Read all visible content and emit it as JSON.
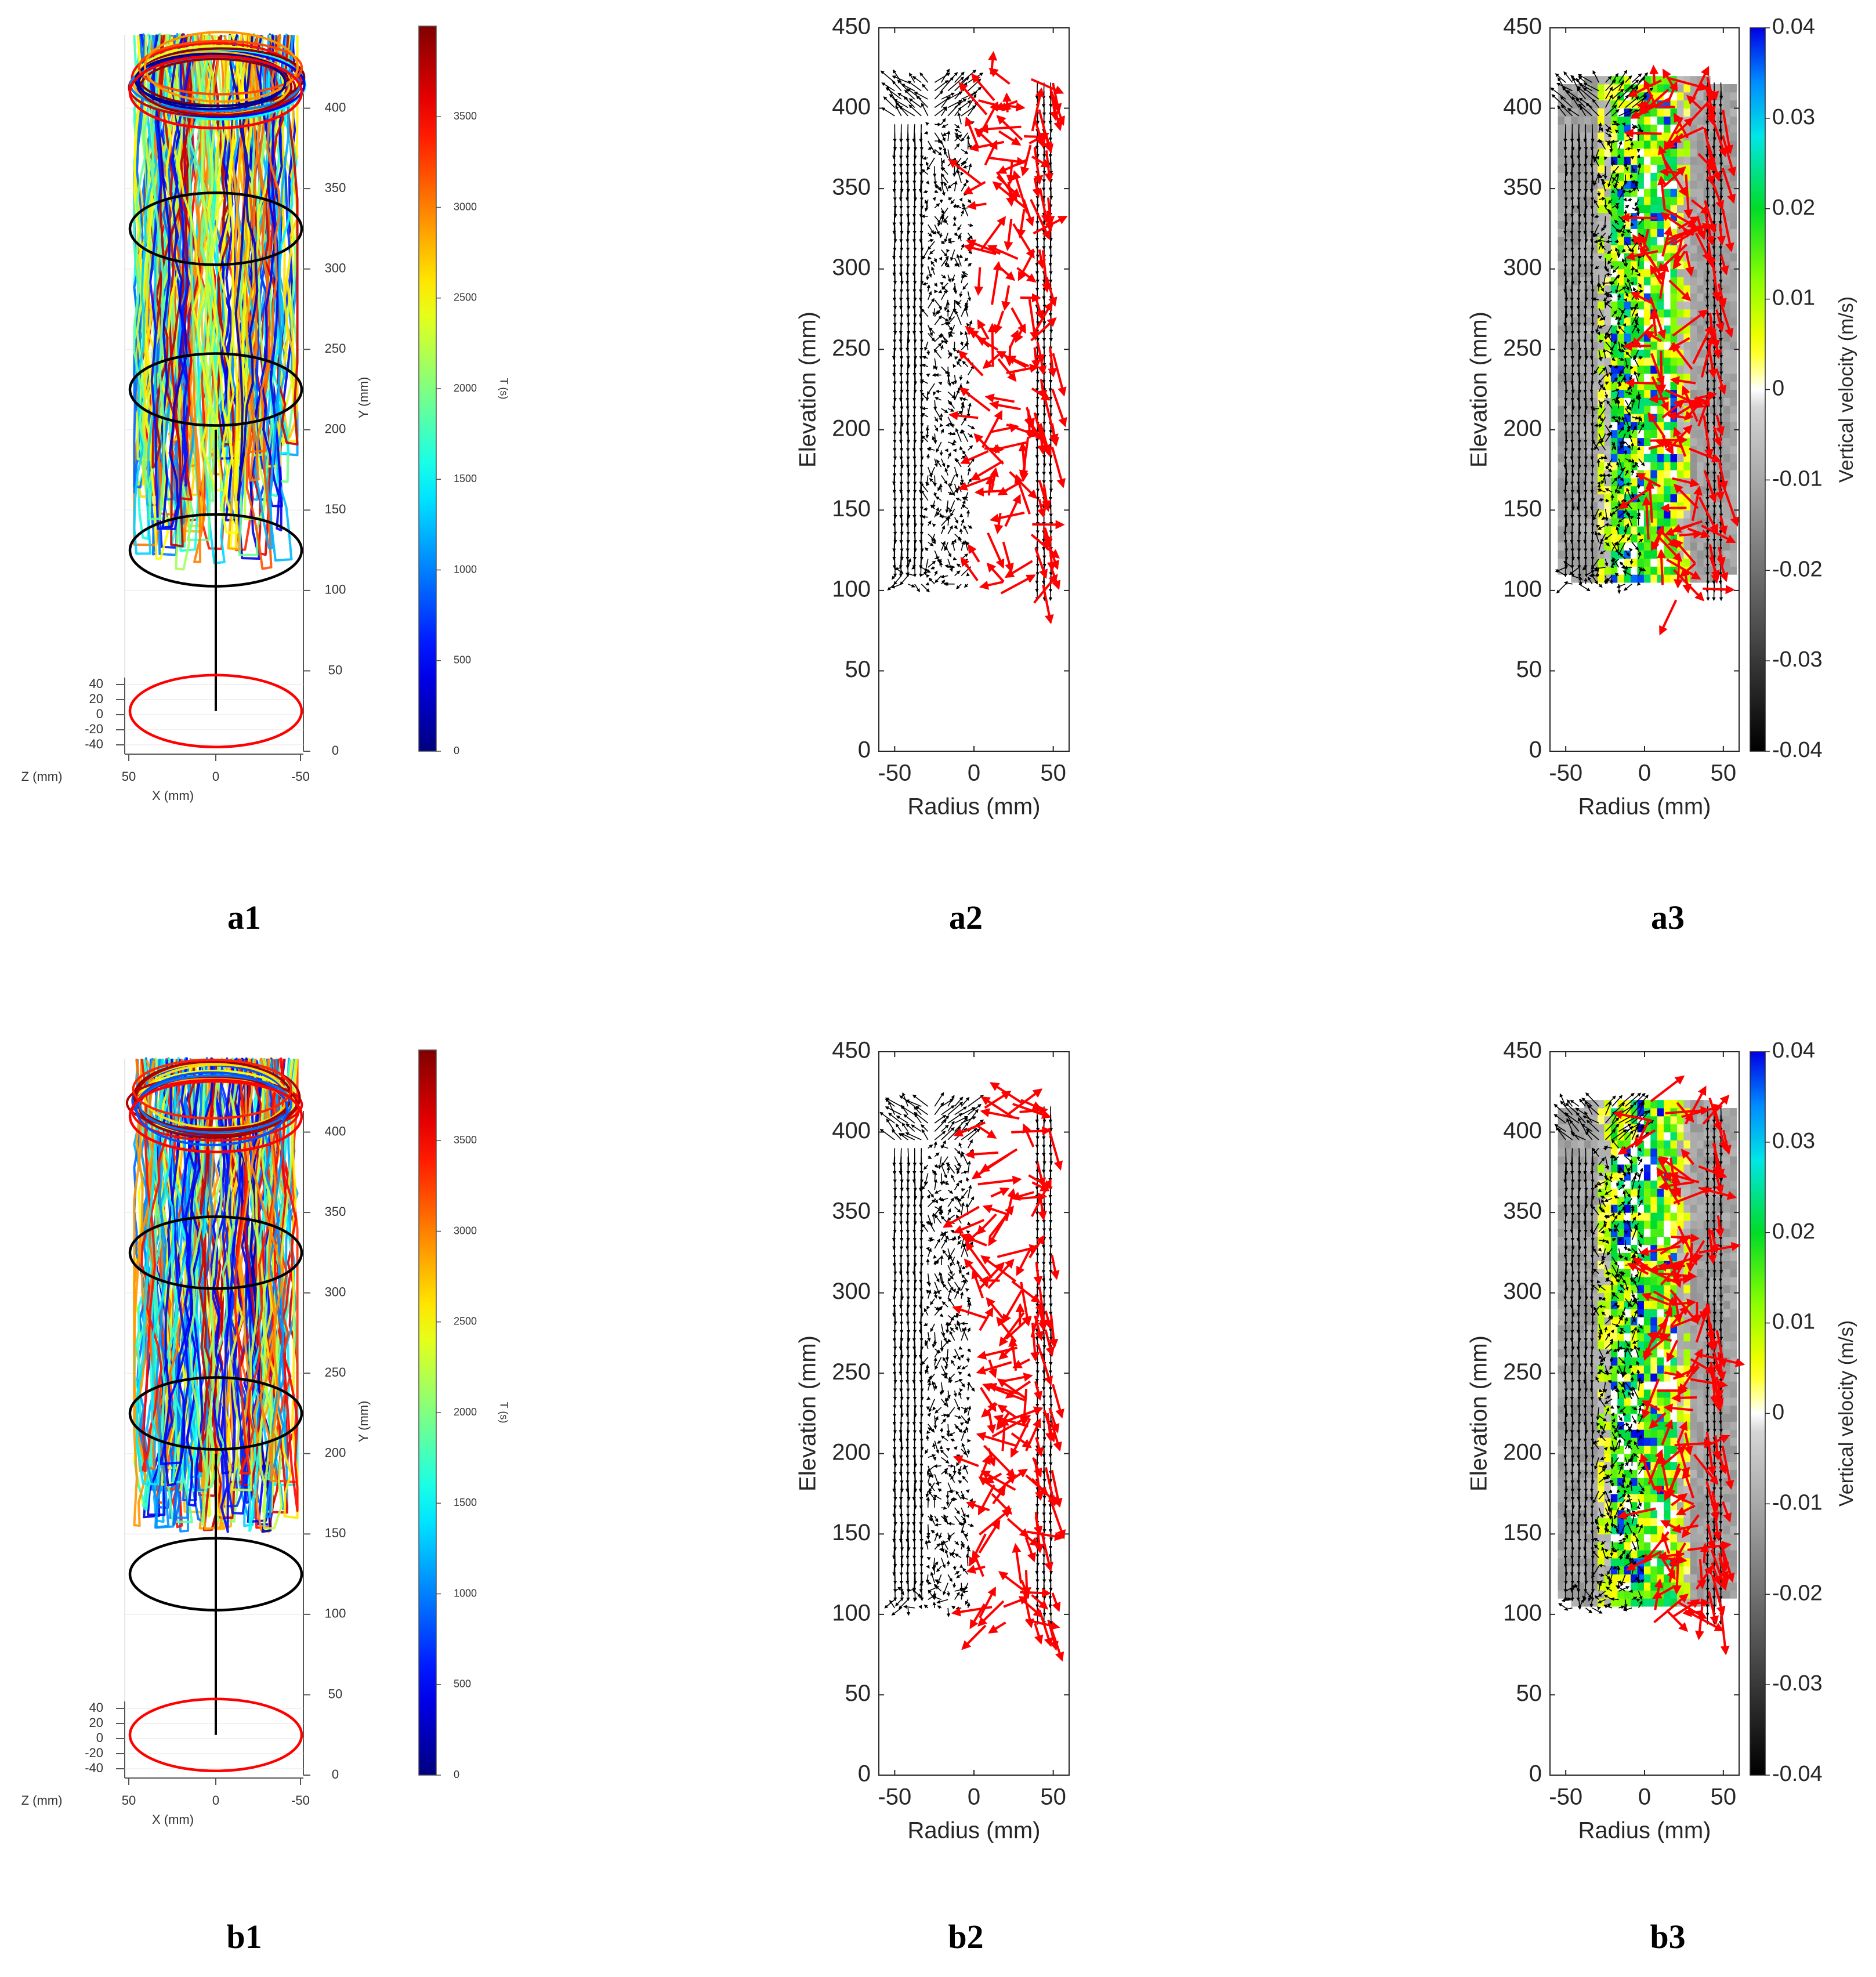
{
  "chart_data": [
    {
      "id": "a1",
      "panel_label": "a1",
      "type": "line",
      "view": "3d-trajectory",
      "ylabel": "Y (mm)",
      "xlabel": "X (mm)",
      "zlabel": "Z (mm)",
      "y_ticks": [
        "0",
        "50",
        "100",
        "150",
        "200",
        "250",
        "300",
        "350",
        "400"
      ],
      "x_ticks": [
        "50",
        "0",
        "-50"
      ],
      "z_ticks": [
        "40",
        "20",
        "0",
        "-20",
        "-40"
      ],
      "ylim": [
        0,
        450
      ],
      "colorbar": {
        "label": "T (s)",
        "ticks": [
          "0",
          "500",
          "1000",
          "1500",
          "2000",
          "2500",
          "3000",
          "3500"
        ],
        "range": [
          0,
          4000
        ],
        "colormap": "jet"
      },
      "rings_y_mm": [
        25,
        125,
        225,
        325,
        410
      ],
      "ring_colors": [
        "#ff0000",
        "#000000",
        "#000000",
        "#000000",
        "#ff0000"
      ],
      "trajectory_y_range": [
        110,
        445
      ],
      "seed": 11
    },
    {
      "id": "a2",
      "panel_label": "a2",
      "type": "quiver",
      "xlabel": "Radius (mm)",
      "ylabel": "Elevation (mm)",
      "x_ticks": [
        "-50",
        "0",
        "50"
      ],
      "y_ticks": [
        "0",
        "50",
        "100",
        "150",
        "200",
        "250",
        "300",
        "350",
        "400",
        "450"
      ],
      "xlim": [
        -60,
        60
      ],
      "ylim": [
        0,
        450
      ],
      "region_y": [
        100,
        420
      ],
      "region_x": [
        -52,
        52
      ],
      "seed": 21
    },
    {
      "id": "a3",
      "panel_label": "a3",
      "type": "heatmap",
      "xlabel": "Radius (mm)",
      "ylabel": "Elevation (mm)",
      "x_ticks": [
        "-50",
        "0",
        "50"
      ],
      "y_ticks": [
        "0",
        "50",
        "100",
        "150",
        "200",
        "250",
        "300",
        "350",
        "400",
        "450"
      ],
      "xlim": [
        -60,
        60
      ],
      "ylim": [
        0,
        450
      ],
      "colorbar": {
        "label": "Vertical velocity (m/s)",
        "ticks": [
          "-0.04",
          "-0.03",
          "-0.02",
          "-0.01",
          "0",
          "0.01",
          "0.02",
          "0.03",
          "0.04"
        ],
        "range": [
          -0.04,
          0.04
        ]
      },
      "seed": 31
    },
    {
      "id": "b1",
      "panel_label": "b1",
      "type": "line",
      "view": "3d-trajectory",
      "ylabel": "Y (mm)",
      "xlabel": "X (mm)",
      "zlabel": "Z (mm)",
      "y_ticks": [
        "0",
        "50",
        "100",
        "150",
        "200",
        "250",
        "300",
        "350",
        "400"
      ],
      "x_ticks": [
        "50",
        "0",
        "-50"
      ],
      "z_ticks": [
        "40",
        "20",
        "0",
        "-20",
        "-40"
      ],
      "ylim": [
        0,
        450
      ],
      "colorbar": {
        "label": "T (s)",
        "ticks": [
          "0",
          "500",
          "1000",
          "1500",
          "2000",
          "2500",
          "3000",
          "3500"
        ],
        "range": [
          0,
          4000
        ],
        "colormap": "jet"
      },
      "rings_y_mm": [
        25,
        125,
        225,
        325,
        410
      ],
      "ring_colors": [
        "#ff0000",
        "#000000",
        "#000000",
        "#000000",
        "#ff0000"
      ],
      "trajectory_y_range": [
        150,
        445
      ],
      "seed": 12
    },
    {
      "id": "b2",
      "panel_label": "b2",
      "type": "quiver",
      "xlabel": "Radius (mm)",
      "ylabel": "Elevation (mm)",
      "x_ticks": [
        "-50",
        "0",
        "50"
      ],
      "y_ticks": [
        "0",
        "50",
        "100",
        "150",
        "200",
        "250",
        "300",
        "350",
        "400",
        "450"
      ],
      "xlim": [
        -60,
        60
      ],
      "ylim": [
        0,
        450
      ],
      "region_y": [
        100,
        420
      ],
      "region_x": [
        -52,
        52
      ],
      "seed": 22
    },
    {
      "id": "b3",
      "panel_label": "b3",
      "type": "heatmap",
      "xlabel": "Radius (mm)",
      "ylabel": "Elevation (mm)",
      "x_ticks": [
        "-50",
        "0",
        "50"
      ],
      "y_ticks": [
        "0",
        "50",
        "100",
        "150",
        "200",
        "250",
        "300",
        "350",
        "400",
        "450"
      ],
      "xlim": [
        -60,
        60
      ],
      "ylim": [
        0,
        450
      ],
      "colorbar": {
        "label": "Vertical velocity (m/s)",
        "ticks": [
          "-0.04",
          "-0.03",
          "-0.02",
          "-0.01",
          "0",
          "0.01",
          "0.02",
          "0.03",
          "0.04"
        ],
        "range": [
          -0.04,
          0.04
        ]
      },
      "seed": 32
    }
  ]
}
